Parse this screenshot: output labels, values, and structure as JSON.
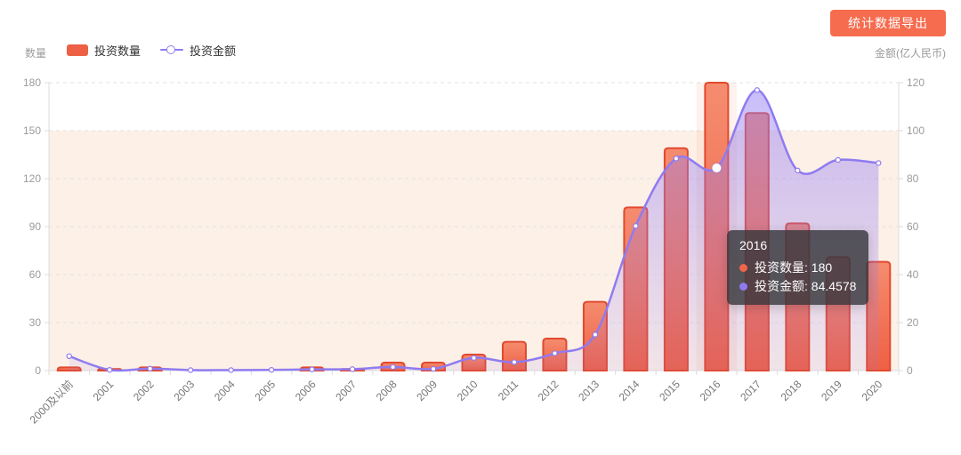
{
  "toolbar": {
    "export_button": "统计数据导出"
  },
  "axes": {
    "left_title": "数量",
    "right_title": "金额(亿人民币)",
    "left_ticks": [
      0,
      30,
      60,
      90,
      120,
      150,
      180
    ],
    "right_ticks": [
      0,
      20,
      40,
      60,
      80,
      100,
      120
    ]
  },
  "legend": [
    {
      "label": "投资数量",
      "type": "bar"
    },
    {
      "label": "投资金额",
      "type": "line"
    }
  ],
  "tooltip": {
    "title": "2016",
    "rows": [
      {
        "text": "投资数量: 180",
        "color": "#F0664A"
      },
      {
        "text": "投资金额: 84.4578",
        "color": "#8F7AF0"
      }
    ]
  },
  "chart_data": {
    "type": "bar+line",
    "categories": [
      "2000及以前",
      "2001",
      "2002",
      "2003",
      "2004",
      "2005",
      "2006",
      "2007",
      "2008",
      "2009",
      "2010",
      "2011",
      "2012",
      "2013",
      "2014",
      "2015",
      "2016",
      "2017",
      "2018",
      "2019",
      "2020"
    ],
    "series": [
      {
        "name": "投资数量",
        "type": "bar",
        "axis": "left",
        "values": [
          2,
          1,
          2,
          0,
          0,
          0,
          2,
          1,
          5,
          5,
          10,
          18,
          20,
          43,
          102,
          139,
          180,
          161,
          92,
          71,
          68
        ]
      },
      {
        "name": "投资金额",
        "type": "line",
        "axis": "right",
        "smooth": true,
        "area": true,
        "values": [
          6,
          0.3,
          0.8,
          0.2,
          0.2,
          0.3,
          0.5,
          0.6,
          1.5,
          0.7,
          5.3,
          3.5,
          7.2,
          15,
          60.3,
          88.4,
          84.4578,
          116.9,
          83.4,
          87.8,
          86.5
        ]
      }
    ],
    "left_axis": {
      "min": 0,
      "max": 180
    },
    "right_axis": {
      "min": 0,
      "max": 120
    },
    "highlighted_category": "2016",
    "grid": "dashed-horizontal",
    "legend_position": "top-left"
  },
  "colors": {
    "bar_fill_top": "#F58C6F",
    "bar_fill_bottom": "#EE6045",
    "bar_border": "#E2492E",
    "line": "#8F7BF0",
    "area_top": "rgba(148,124,243,0.50)",
    "area_bottom": "rgba(148,124,243,0.10)",
    "plot_band": "#FCF0E7",
    "hover_band": "rgba(244,125,85,0.10)",
    "grid": "#E3E3E3",
    "axis": "#DCDCDC",
    "axis_text": "#9B9B9B",
    "x_label_text": "#777777",
    "button_bg": "#F56C4F",
    "tooltip_bg": "rgba(54,54,59,0.82)"
  }
}
